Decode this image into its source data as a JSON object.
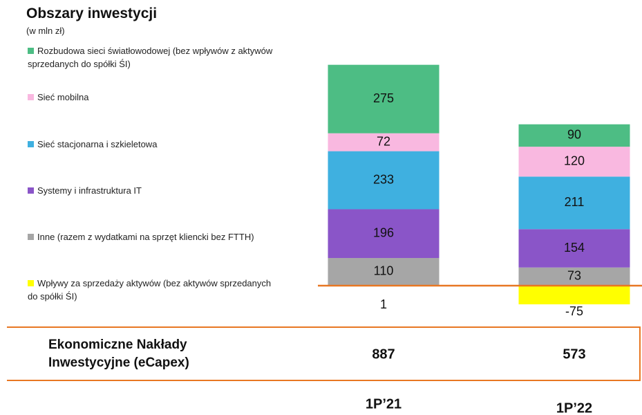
{
  "chart_data": {
    "type": "stacked-bar",
    "title": "Obszary inwestycji",
    "subtitle": "(w mln zł)",
    "categories": [
      "1P’21",
      "1P’22"
    ],
    "series": [
      {
        "name": "Rozbudowa sieci światłowodowej (bez wpływów z aktywów sprzedanych do spółki ŚI)",
        "color": "#4dbd84",
        "values": [
          275,
          90
        ]
      },
      {
        "name": "Sieć mobilna",
        "color": "#f9b8e0",
        "values": [
          72,
          120
        ]
      },
      {
        "name": "Sieć stacjonarna i szkieletowa",
        "color": "#3fb0e0",
        "values": [
          233,
          211
        ]
      },
      {
        "name": "Systemy i infrastruktura IT",
        "color": "#8a55c8",
        "values": [
          196,
          154
        ]
      },
      {
        "name": "Inne (razem z wydatkami na sprzęt kliencki bez FTTH)",
        "color": "#a6a6a6",
        "values": [
          110,
          73
        ]
      },
      {
        "name": "Wpływy za sprzedaży aktywów (bez aktywów sprzedanych do spółki ŚI)",
        "color": "#ffff00",
        "values": [
          1,
          -75
        ]
      }
    ],
    "totals": {
      "label": "Ekonomiczne Nakłady Inwestycyjne (eCapex)",
      "values": [
        887,
        573
      ]
    }
  }
}
